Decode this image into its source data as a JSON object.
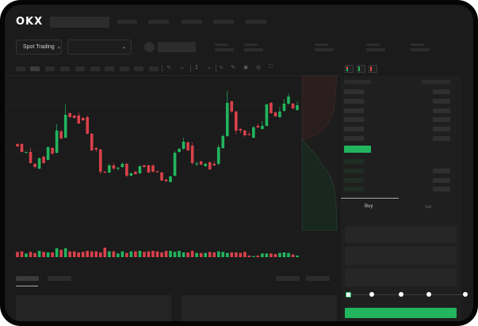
{
  "header": {
    "logo": "OKX"
  },
  "toolbar": {
    "market_selector": "Spot Trading",
    "market_chevron": "chevron-down-icon",
    "pair_chevron": "chevron-down-icon"
  },
  "trade_panel": {
    "tabs": [
      {
        "label": "Buy",
        "active": true
      },
      {
        "label": "Sell",
        "active": false
      }
    ],
    "slider_value_percent": 0,
    "slider_marks": [
      0,
      25,
      50,
      75,
      100
    ]
  },
  "colors": {
    "up": "#22b55e",
    "down": "#d9414a",
    "background": "#1b1b1b",
    "accent": "#22b55e"
  },
  "chart_data": {
    "type": "candlestick",
    "candles": [
      [
        118,
        115,
        119,
        114
      ],
      [
        118,
        108,
        119,
        107
      ],
      [
        107,
        108,
        108.5,
        106.5
      ],
      [
        108,
        94,
        113,
        93
      ],
      [
        93,
        89,
        94,
        87
      ],
      [
        87,
        100,
        101,
        86
      ],
      [
        102,
        94,
        103,
        93
      ],
      [
        98,
        114,
        115,
        97
      ],
      [
        113,
        106,
        114,
        104
      ],
      [
        107,
        135,
        143,
        106
      ],
      [
        134,
        125,
        136,
        124
      ],
      [
        126,
        155,
        168,
        125
      ],
      [
        157,
        152,
        158,
        151
      ],
      [
        154,
        151,
        155,
        150
      ],
      [
        154,
        144,
        158,
        143
      ],
      [
        151,
        148,
        152,
        147
      ],
      [
        152,
        131,
        154,
        130
      ],
      [
        131,
        110,
        132,
        109
      ],
      [
        113,
        111,
        114,
        108
      ],
      [
        111,
        83,
        112,
        80
      ],
      [
        83,
        82,
        84,
        81
      ],
      [
        82,
        91,
        93,
        81
      ],
      [
        91,
        87,
        94,
        85
      ],
      [
        87,
        88,
        89,
        84
      ],
      [
        89,
        93,
        95,
        88
      ],
      [
        93,
        78,
        94,
        76
      ],
      [
        78,
        81,
        82,
        77
      ],
      [
        83,
        80,
        84,
        79
      ],
      [
        81,
        90,
        91,
        80
      ],
      [
        91,
        89,
        92,
        88
      ],
      [
        91,
        82,
        92,
        81
      ],
      [
        91,
        83,
        92,
        82
      ],
      [
        83.5,
        82.5,
        84,
        82
      ],
      [
        82,
        72,
        83,
        71
      ],
      [
        73,
        71,
        74,
        70
      ],
      [
        70,
        77,
        78,
        69
      ],
      [
        78,
        107,
        109,
        77
      ],
      [
        108,
        112,
        113,
        107
      ],
      [
        112,
        121,
        126,
        111
      ],
      [
        120,
        110,
        121,
        109
      ],
      [
        116,
        94,
        120,
        92
      ],
      [
        93,
        93.5,
        96,
        90
      ],
      [
        96,
        92,
        97,
        91
      ],
      [
        90,
        93,
        94,
        89
      ],
      [
        95,
        86,
        96,
        85
      ],
      [
        93,
        91,
        97,
        90
      ],
      [
        93,
        114,
        117,
        91
      ],
      [
        113,
        128,
        130,
        112
      ],
      [
        128,
        170,
        185,
        127
      ],
      [
        172,
        159,
        173,
        157
      ],
      [
        159,
        135,
        160,
        130
      ],
      [
        137,
        135,
        138,
        132
      ],
      [
        135,
        129,
        136,
        127
      ],
      [
        130.5,
        129.5,
        133,
        129
      ],
      [
        126,
        139,
        141,
        125
      ],
      [
        141,
        139,
        144,
        138
      ],
      [
        137,
        141,
        147,
        136
      ],
      [
        141,
        168,
        169,
        140
      ],
      [
        170,
        157,
        171,
        156
      ],
      [
        158,
        153,
        159,
        152
      ],
      [
        152,
        159,
        165,
        151
      ],
      [
        160,
        169,
        175,
        159
      ],
      [
        169,
        178,
        182,
        168
      ],
      [
        169,
        163,
        170,
        162
      ],
      [
        161,
        167,
        172,
        160
      ]
    ],
    "candle_format": [
      "open",
      "close",
      "high",
      "low"
    ],
    "volume": [
      10,
      11,
      7,
      10,
      8,
      12,
      10,
      9,
      9,
      17,
      14,
      17,
      11,
      11,
      9,
      10,
      12,
      11,
      11,
      9,
      18,
      11,
      11,
      7,
      11,
      8,
      11,
      11,
      12,
      10,
      11,
      12,
      11,
      9,
      12,
      12,
      10,
      12,
      9,
      9,
      12,
      8,
      8,
      8,
      10,
      9,
      11,
      10,
      8,
      9,
      9,
      8,
      10,
      3,
      2,
      3,
      7,
      7,
      7,
      6,
      8,
      9,
      8,
      5,
      3
    ]
  }
}
